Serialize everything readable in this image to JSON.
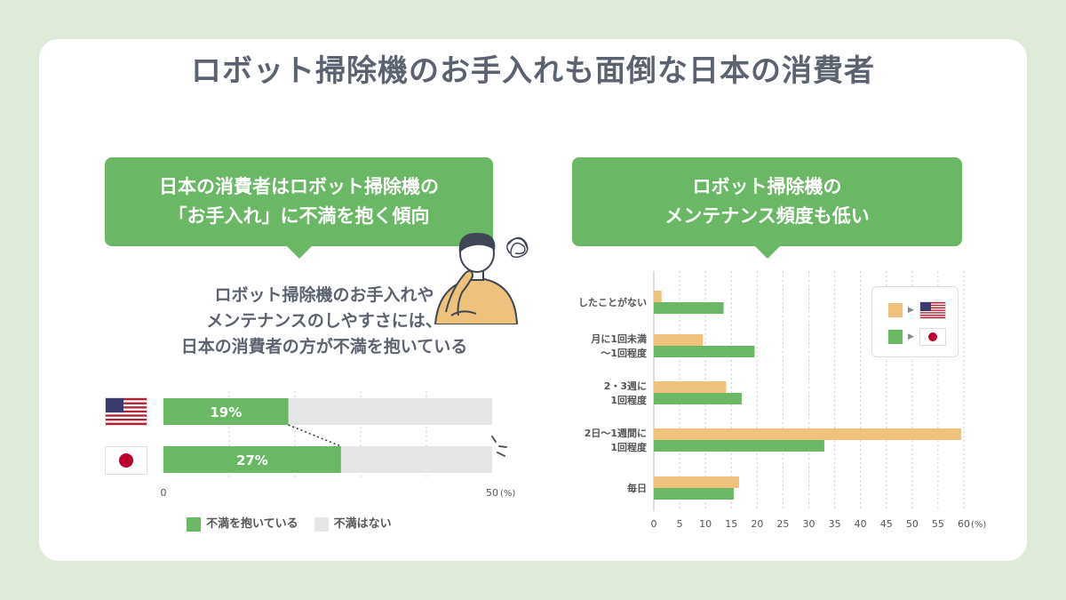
{
  "title": "ロボット掃除機のお手入れも面倒な日本の消費者",
  "left_bubble": {
    "line1": "日本の消費者はロボット掃除機の",
    "line2": "「お手入れ」に不満を抱く傾向"
  },
  "right_bubble": {
    "line1": "ロボット掃除機の",
    "line2": "メンテナンス頻度も低い"
  },
  "subtext": {
    "line1": "ロボット掃除機のお手入れや",
    "line2": "メンテナンスのしやすさには、",
    "line3": "日本の消費者の方が不満を抱いている"
  },
  "colors": {
    "green": "#6ab765",
    "orange": "#eec27a",
    "gray": "#e6e6e6",
    "us_blue": "#3c3b6e",
    "us_red": "#b22234",
    "jp_red": "#bc002d"
  },
  "icons": {
    "us": "us-flag-icon",
    "jp": "jp-flag-icon",
    "person": "thinking-person-icon",
    "tangle": "tangle-icon"
  },
  "chart_data": [
    {
      "type": "bar",
      "orientation": "horizontal",
      "stacked": true,
      "categories": [
        "us-flag-icon",
        "jp-flag-icon"
      ],
      "series": [
        {
          "name": "不満を抱いている",
          "values": [
            19,
            27
          ],
          "labels": [
            "19%",
            "27%"
          ],
          "color": "#6ab765"
        },
        {
          "name": "不満はない",
          "color": "#e6e6e6"
        }
      ],
      "xlim": [
        0,
        50
      ],
      "x_tick_labels": [
        "0",
        "50"
      ],
      "x_unit": "(%)",
      "legend": "bottom"
    },
    {
      "type": "bar",
      "orientation": "horizontal",
      "categories": [
        [
          "したことがない"
        ],
        [
          "月に1回未満",
          "〜1回程度"
        ],
        [
          "2・3週に",
          "1回程度"
        ],
        [
          "2日〜1週間に",
          "1回程度"
        ],
        [
          "毎日"
        ]
      ],
      "series": [
        {
          "name": "us-flag-icon",
          "values": [
            1.5,
            9.5,
            14,
            59.5,
            16.5
          ],
          "color": "#eec27a"
        },
        {
          "name": "jp-flag-icon",
          "values": [
            13.5,
            19.5,
            17,
            33,
            15.5
          ],
          "color": "#6ab765"
        }
      ],
      "xlim": [
        0,
        60
      ],
      "x_ticks": [
        0,
        5,
        10,
        15,
        20,
        25,
        30,
        35,
        40,
        45,
        50,
        55,
        60
      ],
      "x_unit": "(%)",
      "grid": "vertical-dotted",
      "legend": "top-right"
    }
  ]
}
